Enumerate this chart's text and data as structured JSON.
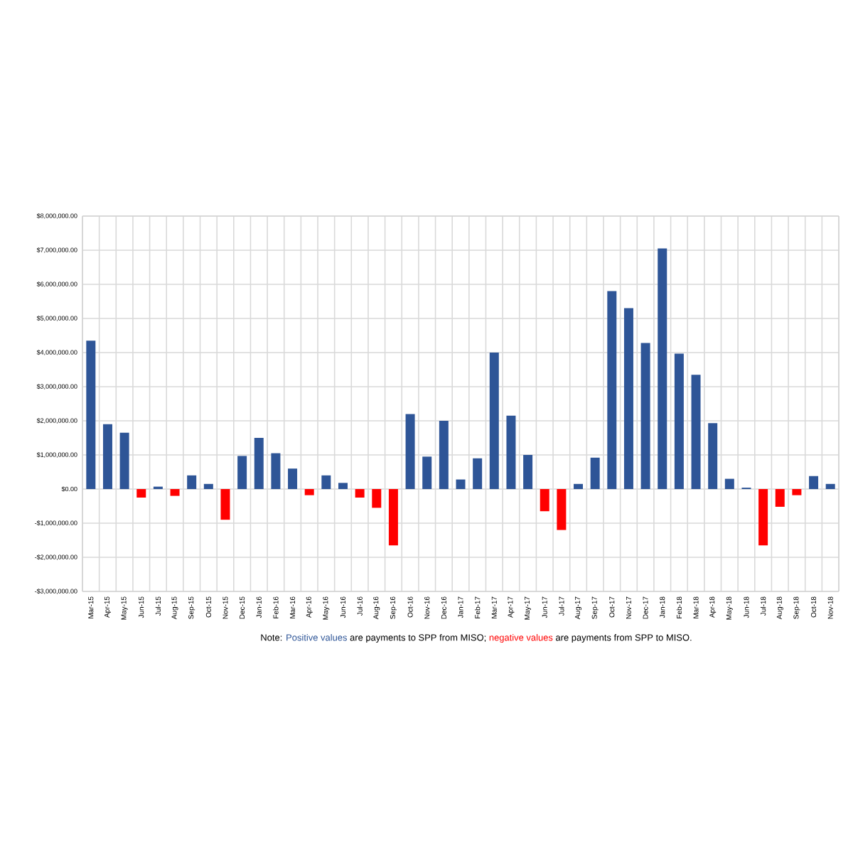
{
  "chart_data": {
    "type": "bar",
    "categories": [
      "Mar-15",
      "Apr-15",
      "May-15",
      "Jun-15",
      "Jul-15",
      "Aug-15",
      "Sep-15",
      "Oct-15",
      "Nov-15",
      "Dec-15",
      "Jan-16",
      "Feb-16",
      "Mar-16",
      "Apr-16",
      "May-16",
      "Jun-16",
      "Jul-16",
      "Aug-16",
      "Sep-16",
      "Oct-16",
      "Nov-16",
      "Dec-16",
      "Jan-17",
      "Feb-17",
      "Mar-17",
      "Apr-17",
      "May-17",
      "Jun-17",
      "Jul-17",
      "Aug-17",
      "Sep-17",
      "Oct-17",
      "Nov-17",
      "Dec-17",
      "Jan-18",
      "Feb-18",
      "Mar-18",
      "Apr-18",
      "May-18",
      "Jun-18",
      "Jul-18",
      "Aug-18",
      "Sep-18",
      "Oct-18",
      "Nov-18"
    ],
    "values": [
      4350000,
      1900000,
      1650000,
      -250000,
      70000,
      -200000,
      400000,
      150000,
      -900000,
      970000,
      1500000,
      1050000,
      600000,
      -180000,
      400000,
      180000,
      -250000,
      -550000,
      -1650000,
      2200000,
      950000,
      2000000,
      280000,
      900000,
      4000000,
      2150000,
      1000000,
      -650000,
      -1200000,
      150000,
      920000,
      5800000,
      5300000,
      4280000,
      7050000,
      3970000,
      3350000,
      1930000,
      300000,
      40000,
      -1650000,
      -520000,
      -180000,
      380000,
      150000
    ],
    "colors": [
      "#2e5597",
      "#2e5597",
      "#2e5597",
      "#ff0000",
      "#2e5597",
      "#ff0000",
      "#2e5597",
      "#2e5597",
      "#ff0000",
      "#2e5597",
      "#2e5597",
      "#2e5597",
      "#2e5597",
      "#ff0000",
      "#2e5597",
      "#2e5597",
      "#ff0000",
      "#ff0000",
      "#ff0000",
      "#2e5597",
      "#2e5597",
      "#2e5597",
      "#2e5597",
      "#2e5597",
      "#2e5597",
      "#2e5597",
      "#2e5597",
      "#ff0000",
      "#ff0000",
      "#2e5597",
      "#2e5597",
      "#2e5597",
      "#2e5597",
      "#2e5597",
      "#2e5597",
      "#2e5597",
      "#2e5597",
      "#2e5597",
      "#2e5597",
      "#2e5597",
      "#ff0000",
      "#ff0000",
      "#ff0000",
      "#2e5597",
      "#2e5597"
    ],
    "ylim": [
      -3000000,
      8000000
    ],
    "yticks": [
      {
        "value": -3000000,
        "label": "-$3,000,000.00"
      },
      {
        "value": -2000000,
        "label": "-$2,000,000.00"
      },
      {
        "value": -1000000,
        "label": "-$1,000,000.00"
      },
      {
        "value": 0,
        "label": "$0.00"
      },
      {
        "value": 1000000,
        "label": "$1,000,000.00"
      },
      {
        "value": 2000000,
        "label": "$2,000,000.00"
      },
      {
        "value": 3000000,
        "label": "$3,000,000.00"
      },
      {
        "value": 4000000,
        "label": "$4,000,000.00"
      },
      {
        "value": 5000000,
        "label": "$5,000,000.00"
      },
      {
        "value": 6000000,
        "label": "$6,000,000.00"
      },
      {
        "value": 7000000,
        "label": "$7,000,000.00"
      },
      {
        "value": 8000000,
        "label": "$8,000,000.00"
      }
    ],
    "grid": true,
    "annotations": [
      "Note:",
      "Positive values",
      "are payments to SPP from MISO;",
      "negative values",
      "are payments from SPP to MISO."
    ]
  }
}
